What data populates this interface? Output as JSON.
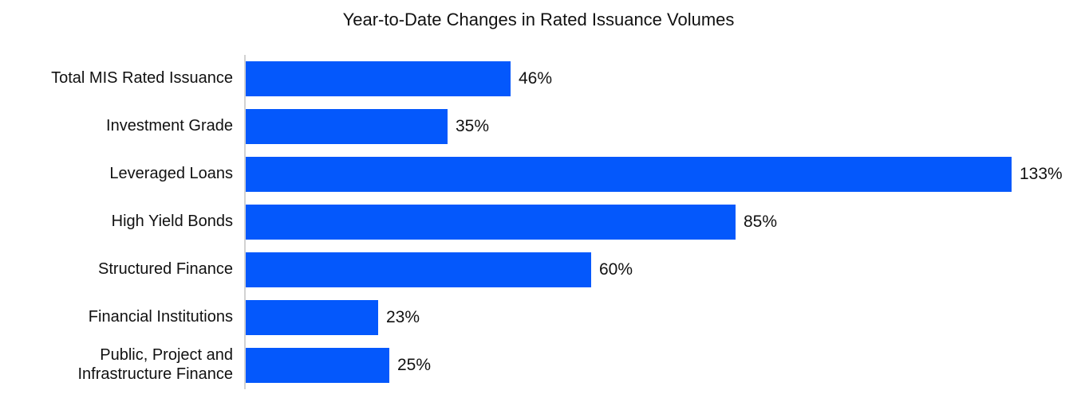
{
  "chart_data": {
    "type": "bar",
    "orientation": "horizontal",
    "title": "Year-to-Date Changes in Rated Issuance Volumes",
    "categories": [
      "Total MIS Rated Issuance",
      "Investment Grade",
      "Leveraged Loans",
      "High Yield Bonds",
      "Structured Finance",
      "Financial Institutions",
      "Public, Project and\nInfrastructure Finance"
    ],
    "values": [
      46,
      35,
      133,
      85,
      60,
      23,
      25
    ],
    "value_labels": [
      "46%",
      "35%",
      "133%",
      "85%",
      "60%",
      "23%",
      "25%"
    ],
    "xlabel": "",
    "ylabel": "",
    "xlim": [
      0,
      140
    ],
    "grid": "off",
    "legend": "none",
    "bar_color": "#0458fc",
    "axis_color": "#d2d2d2",
    "text_color": "#111111"
  }
}
